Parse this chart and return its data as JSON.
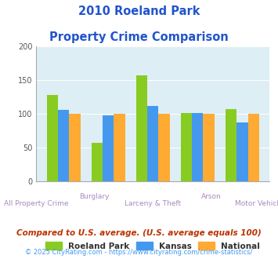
{
  "title_line1": "2010 Roeland Park",
  "title_line2": "Property Crime Comparison",
  "categories": [
    "All Property Crime",
    "Burglary",
    "Larceny & Theft",
    "Arson",
    "Motor Vehicle Theft"
  ],
  "x_labels_top": [
    "",
    "Burglary",
    "",
    "Arson",
    ""
  ],
  "x_labels_bottom": [
    "All Property Crime",
    "",
    "Larceny & Theft",
    "",
    "Motor Vehicle Theft"
  ],
  "roeland_park": [
    128,
    57,
    157,
    101,
    107
  ],
  "kansas": [
    106,
    98,
    112,
    101,
    87
  ],
  "national": [
    100,
    100,
    100,
    100,
    100
  ],
  "colors": {
    "roeland_park": "#88cc22",
    "kansas": "#4499ee",
    "national": "#ffaa33"
  },
  "ylim": [
    0,
    200
  ],
  "yticks": [
    0,
    50,
    100,
    150,
    200
  ],
  "legend_labels": [
    "Roeland Park",
    "Kansas",
    "National"
  ],
  "footnote1": "Compared to U.S. average. (U.S. average equals 100)",
  "footnote2": "© 2025 CityRating.com - https://www.cityrating.com/crime-statistics/",
  "title_color": "#2255cc",
  "x_label_color": "#aa88bb",
  "footnote1_color": "#bb3300",
  "footnote2_color": "#4499ee",
  "bg_color": "#ffffff",
  "plot_bg": "#ddeef5"
}
